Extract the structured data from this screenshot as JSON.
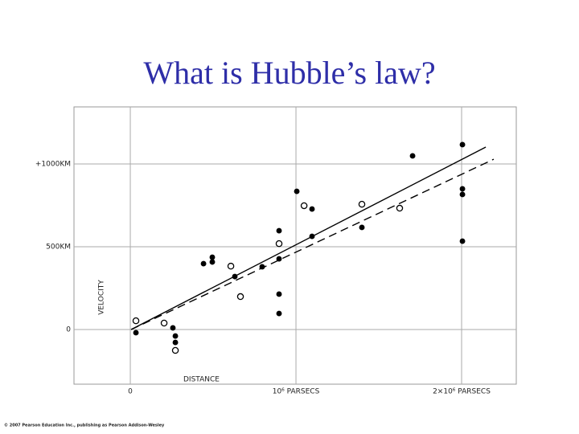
{
  "chart_data": {
    "type": "scatter",
    "title": "What is Hubble’s law?",
    "x_label": "DISTANCE",
    "y_label": "VELOCITY",
    "footer": "© 2007 Pearson Education Inc., publishing as Pearson Addison-Wesley",
    "xlim": [
      -340000,
      2330000
    ],
    "ylim": [
      -330,
      1345
    ],
    "xticks": [
      0,
      {
        "value": 1000000,
        "label": "10⁶ PARSECS"
      },
      {
        "value": 2000000,
        "label": "2×10⁶ PARSECS"
      }
    ],
    "yticks": [
      0,
      {
        "value": 500,
        "label": "500KM"
      },
      {
        "value": 1000,
        "label": "+1000KM"
      }
    ],
    "grid": true,
    "series": [
      {
        "marker": "filled",
        "color": "#000000",
        "x": [
          34000,
          257000,
          272000,
          272000,
          442000,
          495000,
          495000,
          631000,
          796000,
          898000,
          898000,
          898000,
          898000,
          1005000,
          1097000,
          1097000,
          1398000,
          1704000,
          2005000,
          2005000,
          2005000,
          2005000
        ],
        "values": [
          -19,
          10,
          -39,
          -78,
          398,
          437,
          408,
          320,
          379,
          597,
          427,
          214,
          97,
          835,
          728,
          563,
          617,
          1049,
          1117,
          850,
          816,
          534
        ]
      },
      {
        "marker": "open",
        "color": "#000000",
        "x": [
          34000,
          204000,
          272000,
          607000,
          665000,
          898000,
          1049000,
          1398000,
          1626000
        ],
        "values": [
          53,
          39,
          -126,
          383,
          199,
          519,
          748,
          757,
          733
        ]
      }
    ],
    "lines": [
      {
        "style": "solid",
        "color": "#000000",
        "x": [
          5000,
          2146000
        ],
        "values": [
          0,
          1102
        ]
      },
      {
        "style": "dashed",
        "color": "#000000",
        "x": [
          5000,
          2194000
        ],
        "values": [
          0,
          1029
        ]
      }
    ]
  }
}
